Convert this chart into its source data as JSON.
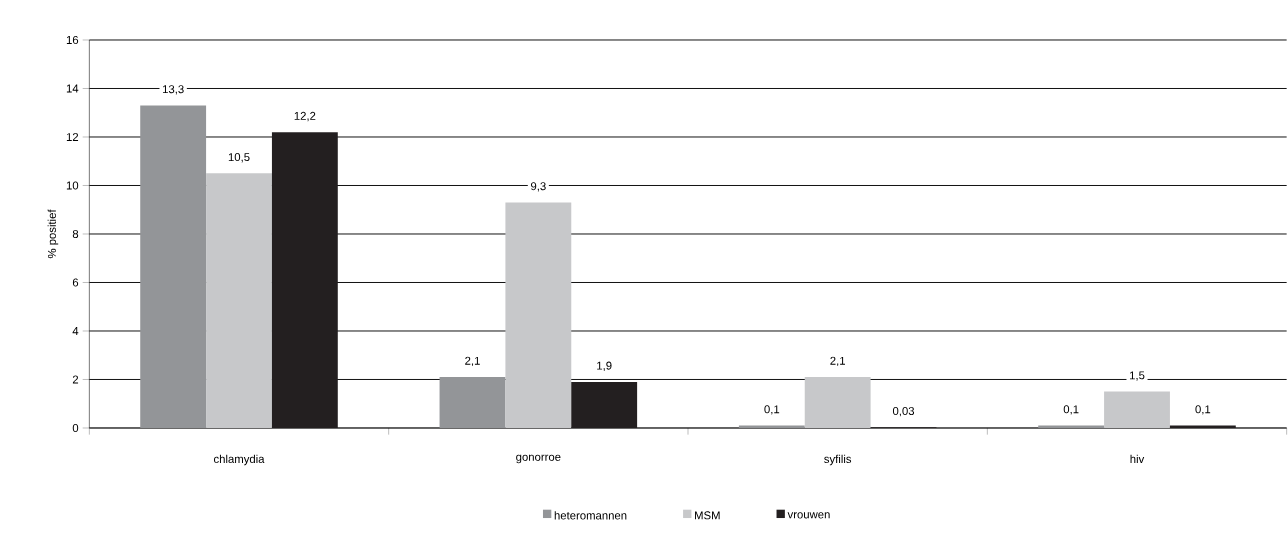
{
  "chart_data": {
    "type": "bar",
    "ylabel": "% positief",
    "categories": [
      "chlamydia",
      "gonorroe",
      "syfilis",
      "hiv"
    ],
    "series": [
      {
        "name": "heteromannen",
        "color": "#939598",
        "values": [
          13.3,
          2.1,
          0.1,
          0.1
        ],
        "value_labels": [
          "13,3",
          "2,1",
          "0,1",
          "0,1"
        ]
      },
      {
        "name": "MSM",
        "color": "#c7c8ca",
        "values": [
          10.5,
          9.3,
          2.1,
          1.5
        ],
        "value_labels": [
          "10,5",
          "9,3",
          "2,1",
          "1,5"
        ]
      },
      {
        "name": "vrouwen",
        "color": "#231f20",
        "values": [
          12.2,
          1.9,
          0.03,
          0.1
        ],
        "value_labels": [
          "12,2",
          "1,9",
          "0,03",
          "0,1"
        ]
      }
    ],
    "ylim": [
      0,
      16
    ],
    "yticks": [
      0,
      2,
      4,
      6,
      8,
      10,
      12,
      14,
      16
    ],
    "grid": "y",
    "legend": "bottom"
  }
}
